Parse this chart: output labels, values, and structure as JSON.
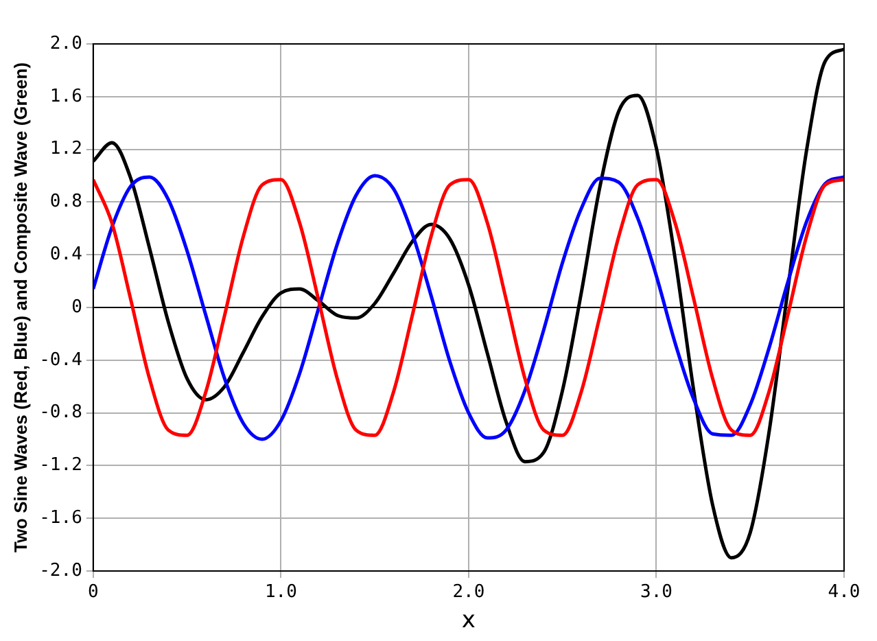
{
  "chart_data": {
    "type": "line",
    "xlabel": "x",
    "ylabel": "Two Sine Waves (Red, Blue) and Composite Wave (Green)",
    "x": [
      0,
      0.1,
      0.2,
      0.3,
      0.4,
      0.5,
      0.6,
      0.7,
      0.8,
      0.9,
      1.0,
      1.1,
      1.2,
      1.3,
      1.4,
      1.5,
      1.6,
      1.7,
      1.8,
      1.9,
      2.0,
      2.1,
      2.2,
      2.3,
      2.4,
      2.5,
      2.6,
      2.7,
      2.8,
      2.9,
      3.0,
      3.1,
      3.2,
      3.3,
      3.4,
      3.5,
      3.6,
      3.7,
      3.8,
      3.9,
      4.0
    ],
    "series": [
      {
        "color": "#ff0000",
        "values": [
          0.97,
          0.64,
          0.06,
          -0.54,
          -0.93,
          -0.97,
          -0.64,
          -0.06,
          0.54,
          0.93,
          0.97,
          0.64,
          0.06,
          -0.54,
          -0.93,
          -0.97,
          -0.64,
          -0.06,
          0.54,
          0.93,
          0.97,
          0.64,
          0.06,
          -0.54,
          -0.93,
          -0.97,
          -0.64,
          -0.06,
          0.54,
          0.93,
          0.97,
          0.64,
          0.06,
          -0.54,
          -0.93,
          -0.97,
          -0.64,
          -0.06,
          0.54,
          0.93,
          0.97
        ]
      },
      {
        "color": "#0000ff",
        "values": [
          0.14,
          0.61,
          0.92,
          0.99,
          0.82,
          0.43,
          -0.06,
          -0.54,
          -0.88,
          -1.0,
          -0.86,
          -0.5,
          -0.01,
          0.48,
          0.85,
          1.0,
          0.9,
          0.56,
          0.09,
          -0.41,
          -0.8,
          -0.99,
          -0.93,
          -0.63,
          -0.17,
          0.34,
          0.75,
          0.98,
          0.95,
          0.68,
          0.24,
          -0.27,
          -0.7,
          -0.96,
          -0.97,
          -0.74,
          -0.31,
          0.19,
          0.65,
          0.94,
          0.99
        ]
      },
      {
        "color": "#000000",
        "values": [
          1.11,
          1.25,
          0.98,
          0.45,
          -0.11,
          -0.54,
          -0.7,
          -0.6,
          -0.34,
          -0.07,
          0.11,
          0.14,
          0.05,
          -0.06,
          -0.08,
          0.03,
          0.26,
          0.5,
          0.63,
          0.52,
          0.17,
          -0.35,
          -0.87,
          -1.17,
          -1.1,
          -0.63,
          0.11,
          0.92,
          1.49,
          1.61,
          1.21,
          0.37,
          -0.64,
          -1.5,
          -1.9,
          -1.71,
          -0.95,
          0.13,
          1.19,
          1.87,
          1.96
        ]
      }
    ],
    "xlim": [
      0,
      4
    ],
    "xticks": [
      0,
      {
        "value": 1,
        "label": "1.0"
      },
      {
        "value": 2,
        "label": "2.0"
      },
      {
        "value": 3,
        "label": "3.0"
      },
      {
        "value": 4,
        "label": "4.0"
      }
    ],
    "ylim": [
      -2,
      2
    ],
    "yticks": [
      {
        "value": -2,
        "label": "-2.0"
      },
      {
        "value": -1.6,
        "label": "-1.6"
      },
      {
        "value": -1.2,
        "label": "-1.2"
      },
      {
        "value": -0.8,
        "label": "-0.8"
      },
      {
        "value": -0.4,
        "label": "-0.4"
      },
      0,
      {
        "value": 0.4,
        "label": "0.4"
      },
      {
        "value": 0.8,
        "label": "0.8"
      },
      {
        "value": 1.2,
        "label": "1.2"
      },
      {
        "value": 1.6,
        "label": "1.6"
      },
      {
        "value": 2,
        "label": "2.0"
      }
    ],
    "grid": true,
    "legend": false,
    "marker": "none",
    "line_style": "solid",
    "ref_lines": [
      {
        "axis": "y",
        "value": 0,
        "color": "#000000"
      }
    ]
  }
}
